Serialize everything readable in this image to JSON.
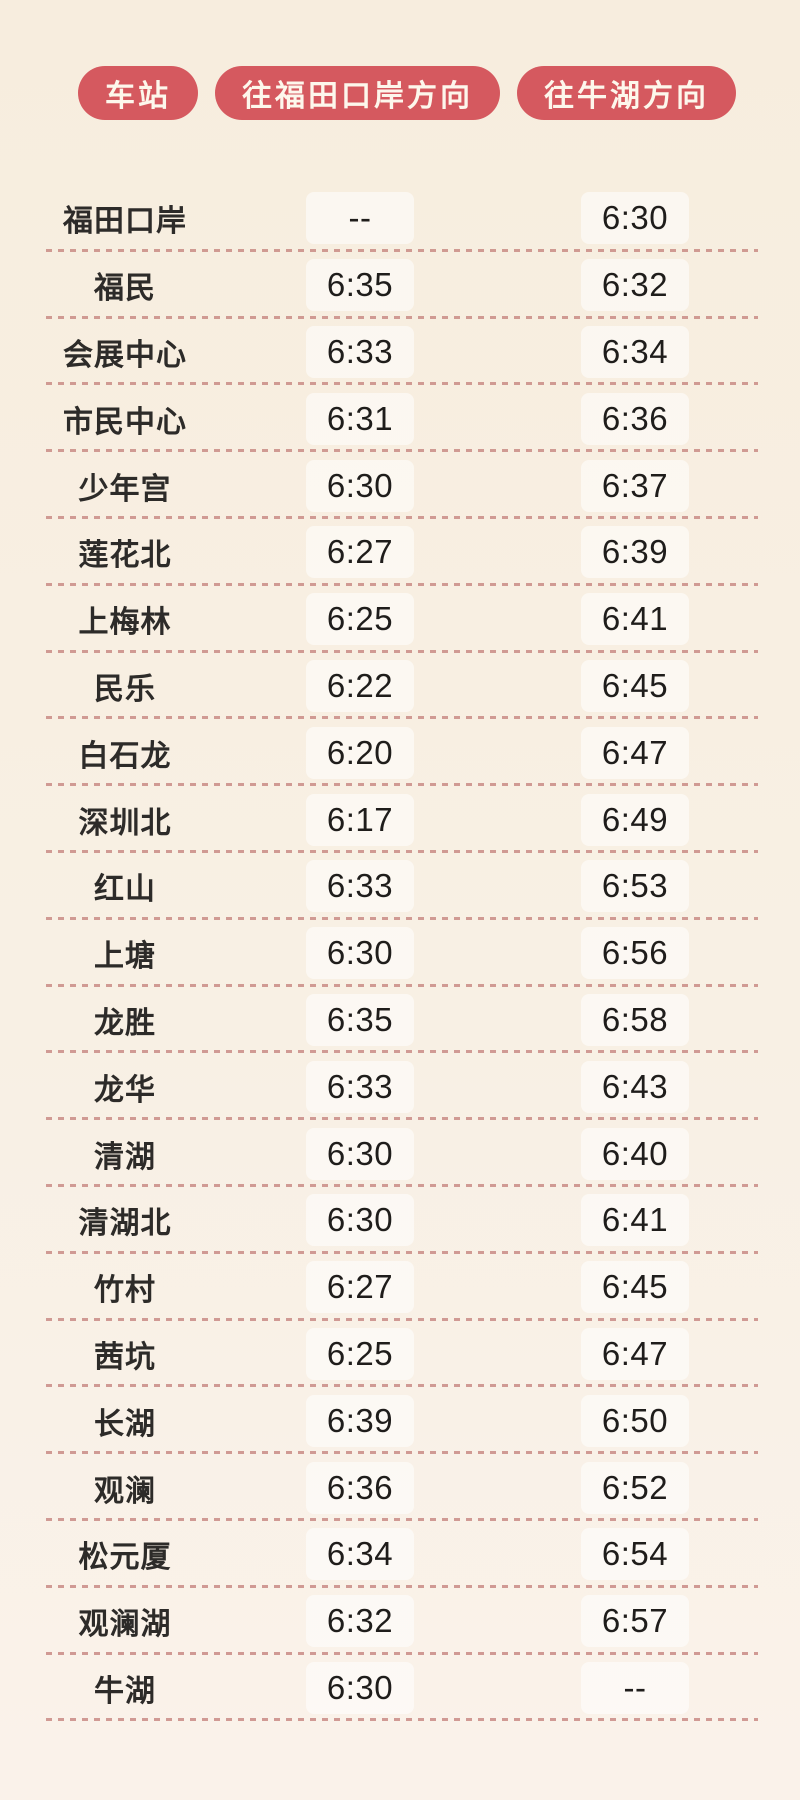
{
  "page": {
    "background_top": "#f7edde",
    "background_bottom": "#faf2ea",
    "badge_color": "#d5595f",
    "badge_text_color": "#fdf7ec",
    "dash_color": "#c98b85",
    "station_text_color": "#2d2b29",
    "time_text_color": "#1f1d1b",
    "time_chip_color": "#ffffff"
  },
  "chart_data": {
    "type": "table",
    "columns": [
      "车站",
      "往福田口岸方向",
      "往牛湖方向"
    ],
    "rows": [
      [
        "福田口岸",
        "--",
        "6:30"
      ],
      [
        "福民",
        "6:35",
        "6:32"
      ],
      [
        "会展中心",
        "6:33",
        "6:34"
      ],
      [
        "市民中心",
        "6:31",
        "6:36"
      ],
      [
        "少年宫",
        "6:30",
        "6:37"
      ],
      [
        "莲花北",
        "6:27",
        "6:39"
      ],
      [
        "上梅林",
        "6:25",
        "6:41"
      ],
      [
        "民乐",
        "6:22",
        "6:45"
      ],
      [
        "白石龙",
        "6:20",
        "6:47"
      ],
      [
        "深圳北",
        "6:17",
        "6:49"
      ],
      [
        "红山",
        "6:33",
        "6:53"
      ],
      [
        "上塘",
        "6:30",
        "6:56"
      ],
      [
        "龙胜",
        "6:35",
        "6:58"
      ],
      [
        "龙华",
        "6:33",
        "6:43"
      ],
      [
        "清湖",
        "6:30",
        "6:40"
      ],
      [
        "清湖北",
        "6:30",
        "6:41"
      ],
      [
        "竹村",
        "6:27",
        "6:45"
      ],
      [
        "茜坑",
        "6:25",
        "6:47"
      ],
      [
        "长湖",
        "6:39",
        "6:50"
      ],
      [
        "观澜",
        "6:36",
        "6:52"
      ],
      [
        "松元厦",
        "6:34",
        "6:54"
      ],
      [
        "观澜湖",
        "6:32",
        "6:57"
      ],
      [
        "牛湖",
        "6:30",
        "--"
      ]
    ]
  }
}
